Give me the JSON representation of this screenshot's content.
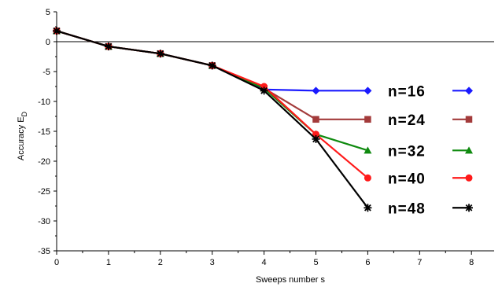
{
  "chart_data": {
    "type": "line",
    "title": "",
    "xlabel": "Sweeps number s",
    "ylabel": "Accuracy E",
    "ylabel_subscript": "D",
    "xlim": [
      0,
      8.5
    ],
    "ylim": [
      -35,
      5
    ],
    "xticks": [
      0,
      1,
      2,
      3,
      4,
      5,
      6,
      7,
      8
    ],
    "yticks": [
      5,
      0,
      -5,
      -10,
      -15,
      -20,
      -25,
      -30,
      -35
    ],
    "zero_line": true,
    "grid": false,
    "legend_placement": "inline-right",
    "series": [
      {
        "name": "n=16",
        "color": "#1a1aff",
        "marker": "diamond",
        "x": [
          0,
          1,
          2,
          3,
          4,
          5,
          6
        ],
        "y": [
          1.8,
          -0.8,
          -2.0,
          -4.0,
          -8.0,
          -8.2,
          -8.2
        ]
      },
      {
        "name": "n=24",
        "color": "#a33b3b",
        "marker": "square",
        "x": [
          0,
          1,
          2,
          3,
          4,
          5,
          6
        ],
        "y": [
          1.8,
          -0.8,
          -2.0,
          -4.0,
          -7.8,
          -13.0,
          -13.0
        ]
      },
      {
        "name": "n=32",
        "color": "#0f8a0f",
        "marker": "triangle",
        "x": [
          0,
          1,
          2,
          3,
          4,
          5,
          6
        ],
        "y": [
          1.8,
          -0.8,
          -2.0,
          -4.0,
          -7.8,
          -15.5,
          -18.2
        ]
      },
      {
        "name": "n=40",
        "color": "#ff1a1a",
        "marker": "circle",
        "x": [
          0,
          1,
          2,
          3,
          4,
          5,
          6
        ],
        "y": [
          1.8,
          -0.8,
          -2.0,
          -4.0,
          -7.5,
          -15.5,
          -22.8
        ]
      },
      {
        "name": "n=48",
        "color": "#000000",
        "marker": "star",
        "x": [
          0,
          1,
          2,
          3,
          4,
          5,
          6
        ],
        "y": [
          1.8,
          -0.8,
          -2.0,
          -4.0,
          -8.2,
          -16.3,
          -27.8
        ]
      }
    ]
  }
}
